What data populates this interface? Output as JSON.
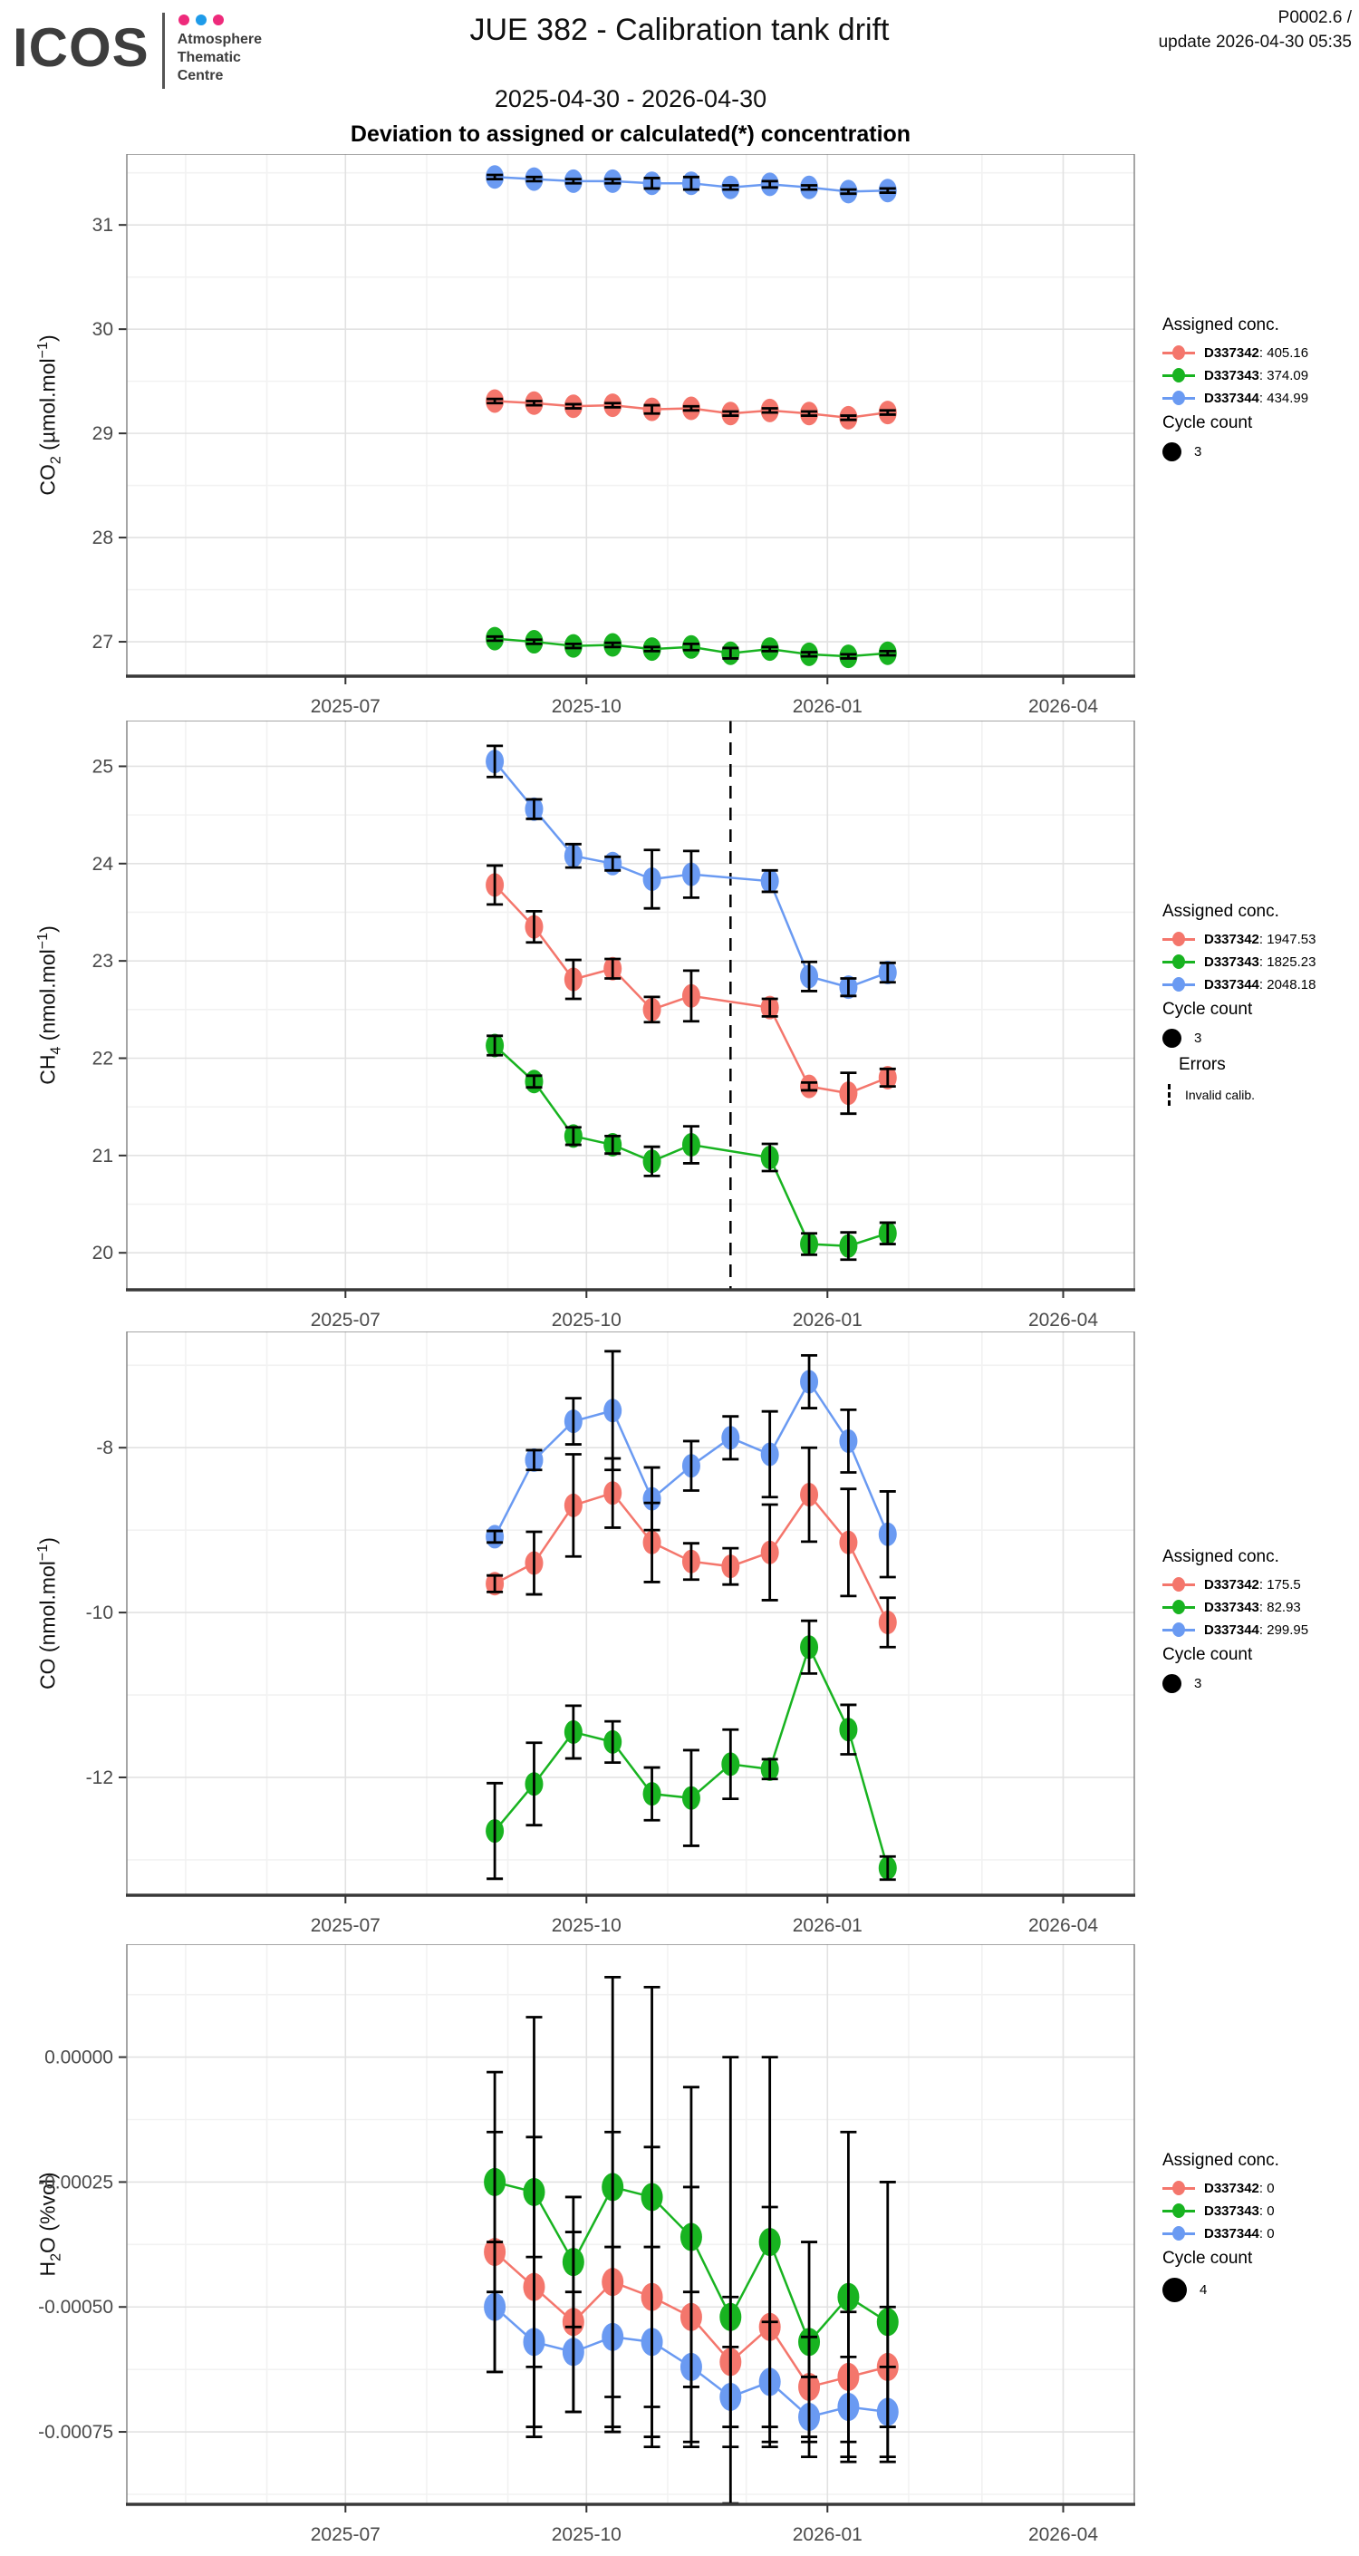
{
  "header": {
    "logo_text": "ICOS",
    "logo_dot_colors": [
      "#EE2A7B",
      "#1E9BE9",
      "#EE2A7B"
    ],
    "logo_subtitle_lines": [
      "Atmosphere",
      "Thematic",
      "Centre"
    ],
    "title": "JUE 382 - Calibration tank drift",
    "subtitle": "2025-04-30 - 2026-04-30",
    "section_title": "Deviation to assigned or calculated(*) concentration",
    "version": "P0002.6 /",
    "update_line": "update  2026-04-30 05:35"
  },
  "x_axis": {
    "tick_labels": [
      "2025-07",
      "2025-10",
      "2026-01",
      "2026-04"
    ],
    "tick_dates": [
      "2025-07-01",
      "2025-10-01",
      "2026-01-01",
      "2026-04-01"
    ],
    "minor_dates": [
      "2025-05-01",
      "2025-06-01",
      "2025-08-01",
      "2025-09-01",
      "2025-11-01",
      "2025-12-01",
      "2026-02-01",
      "2026-03-01"
    ],
    "domain": [
      "2025-04-30",
      "2026-04-30"
    ]
  },
  "chart_data": [
    {
      "type": "line",
      "id": "co2",
      "ylabel": {
        "pre": "CO",
        "sub": "2",
        "mid": " (µmol.mol",
        "sup": "−1",
        "post": ")"
      },
      "yticks": [
        27,
        28,
        29,
        30,
        31
      ],
      "ytick_labels": [
        "27",
        "28",
        "29",
        "30",
        "31"
      ],
      "ylim": [
        26.67,
        31.68
      ],
      "x": [
        "2025-08-27",
        "2025-09-11",
        "2025-09-26",
        "2025-10-11",
        "2025-10-26",
        "2025-11-10",
        "2025-11-25",
        "2025-12-10",
        "2025-12-25",
        "2026-01-09",
        "2026-01-24"
      ],
      "series": [
        {
          "name": "D337342",
          "assigned": "405.16",
          "color": "#F4766C",
          "values": [
            29.31,
            29.29,
            29.26,
            29.27,
            29.23,
            29.24,
            29.19,
            29.22,
            29.19,
            29.15,
            29.2
          ],
          "errors": [
            0.02,
            0.02,
            0.02,
            0.02,
            0.04,
            0.02,
            0.02,
            0.02,
            0.02,
            0.02,
            0.02
          ]
        },
        {
          "name": "D337343",
          "assigned": "374.09",
          "color": "#18B320",
          "values": [
            27.03,
            27.0,
            26.96,
            26.97,
            26.93,
            26.95,
            26.89,
            26.93,
            26.88,
            26.86,
            26.89
          ],
          "errors": [
            0.02,
            0.02,
            0.02,
            0.02,
            0.02,
            0.03,
            0.05,
            0.02,
            0.02,
            0.02,
            0.02
          ]
        },
        {
          "name": "D337344",
          "assigned": "434.99",
          "color": "#6A9AF2",
          "values": [
            31.46,
            31.44,
            31.42,
            31.42,
            31.4,
            31.4,
            31.36,
            31.39,
            31.36,
            31.32,
            31.33
          ],
          "errors": [
            0.02,
            0.02,
            0.02,
            0.02,
            0.05,
            0.06,
            0.02,
            0.03,
            0.02,
            0.02,
            0.02
          ]
        }
      ],
      "legend_title": "Assigned conc.",
      "cycle_label": "Cycle count",
      "cycle_count": "3"
    },
    {
      "type": "line",
      "id": "ch4",
      "ylabel": {
        "pre": "CH",
        "sub": "4",
        "mid": " (nmol.mol",
        "sup": "−1",
        "post": ")"
      },
      "yticks": [
        20,
        21,
        22,
        23,
        24,
        25
      ],
      "ytick_labels": [
        "20",
        "21",
        "22",
        "23",
        "24",
        "25"
      ],
      "ylim": [
        19.62,
        25.47
      ],
      "x": [
        "2025-08-27",
        "2025-09-11",
        "2025-09-26",
        "2025-10-11",
        "2025-10-26",
        "2025-11-10",
        "2025-11-25",
        "2025-12-10",
        "2025-12-25",
        "2026-01-09",
        "2026-01-24"
      ],
      "dashed_line_date": "2025-11-25",
      "series": [
        {
          "name": "D337342",
          "assigned": "1947.53",
          "color": "#F4766C",
          "values": [
            23.78,
            23.35,
            22.81,
            22.92,
            22.5,
            22.64,
            null,
            22.52,
            21.71,
            21.64,
            21.8
          ],
          "errors": [
            0.2,
            0.16,
            0.2,
            0.1,
            0.13,
            0.26,
            null,
            0.09,
            0.04,
            0.21,
            0.09
          ]
        },
        {
          "name": "D337343",
          "assigned": "1825.23",
          "color": "#18B320",
          "values": [
            22.13,
            21.76,
            21.2,
            21.11,
            20.94,
            21.11,
            null,
            20.98,
            20.09,
            20.07,
            20.2
          ],
          "errors": [
            0.1,
            0.06,
            0.09,
            0.09,
            0.15,
            0.19,
            null,
            0.14,
            0.11,
            0.14,
            0.11
          ]
        },
        {
          "name": "D337344",
          "assigned": "2048.18",
          "color": "#6A9AF2",
          "values": [
            25.05,
            24.56,
            24.08,
            24.0,
            23.84,
            23.89,
            null,
            23.82,
            22.84,
            22.73,
            22.88
          ],
          "errors": [
            0.16,
            0.1,
            0.12,
            0.07,
            0.3,
            0.24,
            null,
            0.11,
            0.15,
            0.09,
            0.1
          ]
        }
      ],
      "legend_title": "Assigned conc.",
      "cycle_label": "Cycle count",
      "cycle_count": "3",
      "errors_legend": {
        "title": "Errors",
        "item": "Invalid calib."
      }
    },
    {
      "type": "line",
      "id": "co",
      "ylabel": {
        "pre": "CO",
        "sub": "",
        "mid": " (nmol.mol",
        "sup": "−1",
        "post": ")"
      },
      "yticks": [
        -12,
        -10,
        -8
      ],
      "ytick_labels": [
        "-12",
        "-10",
        "-8"
      ],
      "ylim": [
        -13.43,
        -6.59
      ],
      "x": [
        "2025-08-27",
        "2025-09-11",
        "2025-09-26",
        "2025-10-11",
        "2025-10-26",
        "2025-11-10",
        "2025-11-25",
        "2025-12-10",
        "2025-12-25",
        "2026-01-09",
        "2026-01-24"
      ],
      "series": [
        {
          "name": "D337342",
          "assigned": "175.5",
          "color": "#F4766C",
          "values": [
            -9.65,
            -9.4,
            -8.7,
            -8.55,
            -9.15,
            -9.38,
            -9.44,
            -9.27,
            -8.57,
            -9.15,
            -10.12
          ],
          "errors": [
            0.1,
            0.38,
            0.62,
            0.42,
            0.48,
            0.22,
            0.22,
            0.58,
            0.57,
            0.65,
            0.3
          ]
        },
        {
          "name": "D337343",
          "assigned": "82.93",
          "color": "#18B320",
          "values": [
            -12.65,
            -12.08,
            -11.45,
            -11.57,
            -12.2,
            -12.25,
            -11.84,
            -11.9,
            -10.42,
            -11.42,
            -13.1
          ],
          "errors": [
            0.58,
            0.5,
            0.32,
            0.25,
            0.32,
            0.58,
            0.42,
            0.12,
            0.32,
            0.3,
            0.14
          ]
        },
        {
          "name": "D337344",
          "assigned": "299.95",
          "color": "#6A9AF2",
          "values": [
            -9.08,
            -8.15,
            -7.68,
            -7.55,
            -8.62,
            -8.22,
            -7.88,
            -8.08,
            -7.2,
            -7.92,
            -9.05
          ],
          "errors": [
            0.07,
            0.12,
            0.28,
            0.72,
            0.38,
            0.3,
            0.26,
            0.52,
            0.32,
            0.38,
            0.52
          ]
        }
      ],
      "legend_title": "Assigned conc.",
      "cycle_label": "Cycle count",
      "cycle_count": "3"
    },
    {
      "type": "line",
      "id": "h2o",
      "ylabel": {
        "pre": "H",
        "sub": "2",
        "mid": "O (%vol)",
        "sup": "",
        "post": ""
      },
      "yticks": [
        -0.00075,
        -0.0005,
        -0.00025,
        0
      ],
      "ytick_labels": [
        "-0.00075",
        "-0.00050",
        "-0.00025",
        "0.00000"
      ],
      "ylim": [
        -0.000895,
        0.000226
      ],
      "x": [
        "2025-08-27",
        "2025-09-11",
        "2025-09-26",
        "2025-10-11",
        "2025-10-26",
        "2025-11-10",
        "2025-11-25",
        "2025-12-10",
        "2025-12-25",
        "2026-01-09",
        "2026-01-24"
      ],
      "series": [
        {
          "name": "D337342",
          "assigned": "0",
          "color": "#F4766C",
          "values": [
            -0.00039,
            -0.00046,
            -0.00053,
            -0.00045,
            -0.00048,
            -0.00052,
            -0.00061,
            -0.00054,
            -0.00066,
            -0.00064,
            -0.00062
          ],
          "errors": [
            0.00024,
            0.0003,
            0.00018,
            0.0003,
            0.0003,
            0.00026,
            0.00013,
            0.00024,
            0.0001,
            0.00013,
            0.00012
          ]
        },
        {
          "name": "D337343",
          "assigned": "0",
          "color": "#18B320",
          "values": [
            -0.00025,
            -0.00027,
            -0.00041,
            -0.00026,
            -0.00028,
            -0.00036,
            -0.00052,
            -0.00037,
            -0.00057,
            -0.00048,
            -0.00053
          ],
          "errors": [
            0.00022,
            0.00035,
            0.00013,
            0.00042,
            0.00042,
            0.0003,
            0.00052,
            0.00037,
            0.0002,
            0.00033,
            0.00028
          ]
        },
        {
          "name": "D337344",
          "assigned": "0",
          "color": "#6A9AF2",
          "values": [
            -0.0005,
            -0.00057,
            -0.00059,
            -0.00056,
            -0.00057,
            -0.00062,
            -0.00068,
            -0.00065,
            -0.00072,
            -0.0007,
            -0.00071
          ],
          "errors": [
            0.00013,
            0.00017,
            0.00012,
            0.00018,
            0.00019,
            0.00015,
            0.0001,
            0.00012,
            8e-05,
            0.0001,
            9e-05
          ]
        }
      ],
      "legend_title": "Assigned conc.",
      "cycle_label": "Cycle count",
      "cycle_count": "4"
    }
  ]
}
